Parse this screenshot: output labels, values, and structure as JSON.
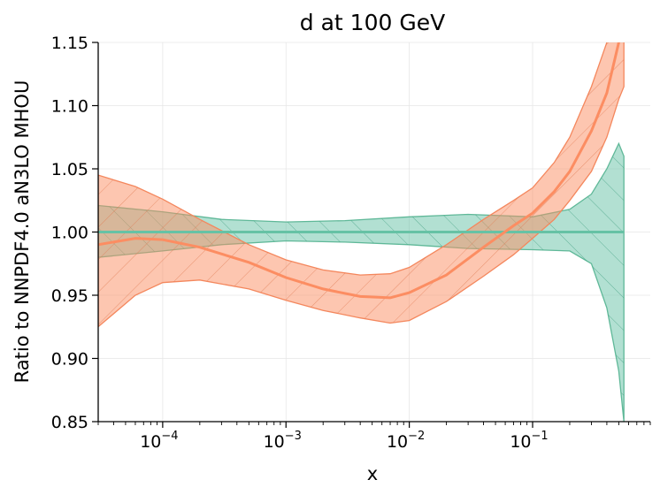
{
  "chart_data": {
    "type": "area",
    "title": "d at 100 GeV",
    "xlabel": "x",
    "ylabel": "Ratio to NNPDF4.0 aN3LO MHOU",
    "xscale": "log",
    "xlim": [
      3e-05,
      0.9
    ],
    "ylim": [
      0.85,
      1.15
    ],
    "grid": true,
    "legend": "none",
    "yticks": [
      "0.85",
      "0.90",
      "0.95",
      "1.00",
      "1.05",
      "1.10",
      "1.15"
    ],
    "xticks": [
      {
        "base": "10",
        "exp": "−4",
        "value": 0.0001
      },
      {
        "base": "10",
        "exp": "−3",
        "value": 0.001
      },
      {
        "base": "10",
        "exp": "−2",
        "value": 0.01
      },
      {
        "base": "10",
        "exp": "−1",
        "value": 0.1
      }
    ],
    "series": [
      {
        "color": "#66c2a5",
        "x": [
          3e-05,
          0.0001,
          0.0003,
          0.001,
          0.003,
          0.01,
          0.03,
          0.1,
          0.2,
          0.3,
          0.4,
          0.5,
          0.55
        ],
        "central": [
          1.0,
          1.0,
          1.0,
          1.0,
          1.0,
          1.0,
          1.0,
          1.0,
          1.0,
          1.0,
          1.0,
          1.0,
          1.0
        ],
        "upper": [
          1.021,
          1.016,
          1.01,
          1.008,
          1.009,
          1.012,
          1.014,
          1.012,
          1.018,
          1.03,
          1.05,
          1.07,
          1.06
        ],
        "lower": [
          0.98,
          0.985,
          0.99,
          0.993,
          0.992,
          0.99,
          0.987,
          0.986,
          0.985,
          0.975,
          0.94,
          0.89,
          0.85
        ]
      },
      {
        "color": "#fc8d62",
        "x": [
          3e-05,
          6e-05,
          0.0001,
          0.0002,
          0.0005,
          0.001,
          0.002,
          0.004,
          0.007,
          0.01,
          0.02,
          0.04,
          0.07,
          0.1,
          0.15,
          0.2,
          0.3,
          0.4,
          0.5,
          0.55
        ],
        "central": [
          0.99,
          0.995,
          0.994,
          0.988,
          0.976,
          0.964,
          0.955,
          0.949,
          0.948,
          0.952,
          0.966,
          0.988,
          1.005,
          1.015,
          1.032,
          1.048,
          1.08,
          1.11,
          1.15,
          1.17
        ],
        "upper": [
          1.045,
          1.036,
          1.026,
          1.01,
          0.99,
          0.978,
          0.97,
          0.966,
          0.967,
          0.972,
          0.99,
          1.01,
          1.025,
          1.035,
          1.055,
          1.075,
          1.115,
          1.15,
          1.2,
          1.23
        ],
        "lower": [
          0.925,
          0.95,
          0.96,
          0.962,
          0.955,
          0.946,
          0.938,
          0.932,
          0.928,
          0.93,
          0.945,
          0.965,
          0.982,
          0.995,
          1.01,
          1.025,
          1.048,
          1.075,
          1.105,
          1.115
        ]
      }
    ]
  }
}
